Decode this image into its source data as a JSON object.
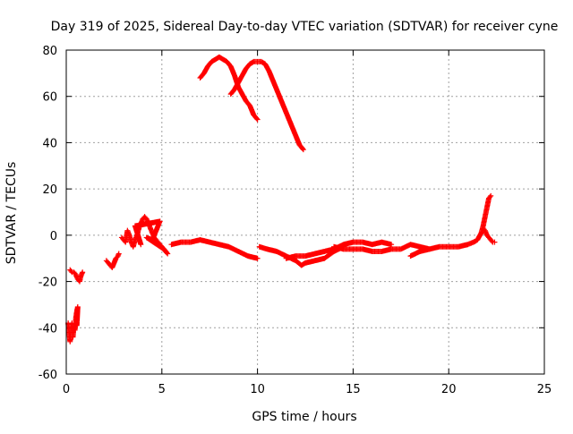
{
  "chart_data": {
    "type": "scatter",
    "title": "Day 319 of 2025, Sidereal Day-to-day VTEC variation (SDTVAR) for receiver cyne",
    "xlabel": "GPS time / hours",
    "ylabel": "SDTVAR / TECUs",
    "xlim": [
      0,
      25
    ],
    "ylim": [
      -60,
      80
    ],
    "x_ticks": [
      0,
      5,
      10,
      15,
      20,
      25
    ],
    "y_ticks": [
      -60,
      -40,
      -20,
      0,
      20,
      40,
      60,
      80
    ],
    "x_tick_labels": [
      "0",
      "5",
      "10",
      "15",
      "20",
      "25"
    ],
    "y_tick_labels": [
      "-60",
      "-40",
      "-20",
      "0",
      "20",
      "40",
      "60",
      "80"
    ],
    "grid": true,
    "marker": "+",
    "series_color": "#ff0000",
    "series": [
      {
        "name": "SDTVAR",
        "segments": [
          {
            "name": "arc-early-low",
            "points": [
              [
                0.1,
                -38
              ],
              [
                0.15,
                -42
              ],
              [
                0.2,
                -46
              ],
              [
                0.25,
                -40
              ],
              [
                0.3,
                -38
              ],
              [
                0.35,
                -44
              ],
              [
                0.4,
                -39
              ]
            ]
          },
          {
            "name": "arc-early-low-b",
            "points": [
              [
                0.45,
                -41
              ],
              [
                0.5,
                -38
              ],
              [
                0.5,
                -36
              ],
              [
                0.55,
                -33
              ],
              [
                0.6,
                -31
              ],
              [
                0.55,
                -39
              ]
            ]
          },
          {
            "name": "arc-early-mid",
            "points": [
              [
                0.2,
                -15
              ],
              [
                0.3,
                -16
              ],
              [
                0.4,
                -16
              ],
              [
                0.5,
                -17
              ],
              [
                0.6,
                -19
              ],
              [
                0.7,
                -20
              ],
              [
                0.75,
                -18
              ],
              [
                0.8,
                -17
              ],
              [
                0.85,
                -16
              ]
            ]
          },
          {
            "name": "arc-2h",
            "points": [
              [
                2.1,
                -11
              ],
              [
                2.2,
                -12
              ],
              [
                2.3,
                -13
              ],
              [
                2.4,
                -14
              ],
              [
                2.6,
                -10
              ],
              [
                2.7,
                -9
              ],
              [
                2.75,
                -8
              ]
            ]
          },
          {
            "name": "arc-3to6",
            "points": [
              [
                2.9,
                -1
              ],
              [
                3.0,
                -2
              ],
              [
                3.1,
                -3
              ],
              [
                3.2,
                2
              ],
              [
                3.3,
                0
              ],
              [
                3.4,
                -3
              ],
              [
                3.5,
                -5
              ],
              [
                3.6,
                -2
              ],
              [
                3.7,
                0
              ],
              [
                3.8,
                3
              ],
              [
                3.9,
                5
              ],
              [
                4.0,
                7
              ],
              [
                4.1,
                8
              ],
              [
                4.2,
                7
              ],
              [
                4.3,
                5
              ],
              [
                4.4,
                3
              ],
              [
                4.5,
                1
              ],
              [
                4.6,
                -1
              ],
              [
                4.7,
                -2
              ],
              [
                4.8,
                -3
              ],
              [
                4.9,
                -4
              ],
              [
                5.0,
                -5
              ],
              [
                5.2,
                -7
              ],
              [
                5.3,
                -8
              ],
              [
                5.1,
                -6
              ],
              [
                4.2,
                -1
              ],
              [
                4.5,
                -2
              ],
              [
                4.8,
                4
              ],
              [
                4.9,
                6
              ],
              [
                3.6,
                4
              ],
              [
                3.9,
                -4
              ]
            ]
          },
          {
            "name": "arc-6to10",
            "points": [
              [
                5.5,
                -4
              ],
              [
                6.0,
                -3
              ],
              [
                6.5,
                -3
              ],
              [
                7.0,
                -2
              ],
              [
                7.5,
                -3
              ],
              [
                8.0,
                -4
              ],
              [
                8.5,
                -5
              ],
              [
                9.0,
                -7
              ],
              [
                9.5,
                -9
              ],
              [
                10.0,
                -10
              ]
            ]
          },
          {
            "name": "arc-10to14",
            "points": [
              [
                10.1,
                -5
              ],
              [
                10.5,
                -6
              ],
              [
                11.0,
                -7
              ],
              [
                11.5,
                -9
              ],
              [
                12.0,
                -11
              ],
              [
                12.3,
                -13
              ],
              [
                12.5,
                -12
              ],
              [
                13.0,
                -11
              ],
              [
                13.5,
                -10
              ],
              [
                14.0,
                -7
              ],
              [
                14.5,
                -5
              ]
            ]
          },
          {
            "name": "arc-12to17",
            "points": [
              [
                11.5,
                -10
              ],
              [
                12.0,
                -9
              ],
              [
                12.5,
                -9
              ],
              [
                13.0,
                -8
              ],
              [
                13.5,
                -7
              ],
              [
                14.0,
                -6
              ],
              [
                14.5,
                -4
              ],
              [
                15.0,
                -3
              ],
              [
                15.5,
                -3
              ],
              [
                16.0,
                -4
              ],
              [
                16.5,
                -3
              ],
              [
                17.0,
                -4
              ]
            ]
          },
          {
            "name": "arc-14to19",
            "points": [
              [
                14.0,
                -5
              ],
              [
                14.5,
                -6
              ],
              [
                15.0,
                -6
              ],
              [
                15.5,
                -6
              ],
              [
                16.0,
                -7
              ],
              [
                16.5,
                -7
              ],
              [
                17.0,
                -6
              ],
              [
                17.5,
                -6
              ],
              [
                18.0,
                -4
              ],
              [
                18.5,
                -5
              ],
              [
                19.0,
                -6
              ]
            ]
          },
          {
            "name": "arc-18to22",
            "points": [
              [
                18.0,
                -9
              ],
              [
                18.5,
                -7
              ],
              [
                19.0,
                -6
              ],
              [
                19.5,
                -5
              ],
              [
                20.0,
                -5
              ],
              [
                20.5,
                -5
              ],
              [
                21.0,
                -4
              ],
              [
                21.3,
                -3
              ],
              [
                21.5,
                -2
              ],
              [
                21.7,
                1
              ],
              [
                21.8,
                4
              ],
              [
                21.9,
                8
              ],
              [
                22.0,
                12
              ],
              [
                22.1,
                16
              ],
              [
                22.2,
                17
              ]
            ]
          },
          {
            "name": "arc-22tail",
            "points": [
              [
                21.8,
                3
              ],
              [
                21.9,
                2
              ],
              [
                22.0,
                0
              ],
              [
                22.1,
                -1
              ],
              [
                22.2,
                -2
              ],
              [
                22.3,
                -3
              ],
              [
                22.4,
                -3
              ]
            ]
          },
          {
            "name": "arc-high-1",
            "points": [
              [
                7.0,
                68
              ],
              [
                7.2,
                70
              ],
              [
                7.4,
                73
              ],
              [
                7.6,
                75
              ],
              [
                7.8,
                76
              ],
              [
                8.0,
                77
              ],
              [
                8.2,
                76
              ],
              [
                8.4,
                75
              ],
              [
                8.6,
                73
              ],
              [
                8.8,
                69
              ],
              [
                9.0,
                64
              ],
              [
                9.2,
                61
              ],
              [
                9.4,
                58
              ],
              [
                9.6,
                56
              ],
              [
                9.8,
                52
              ],
              [
                10.0,
                50
              ]
            ]
          },
          {
            "name": "arc-high-2",
            "points": [
              [
                8.6,
                61
              ],
              [
                8.8,
                63
              ],
              [
                9.0,
                66
              ],
              [
                9.2,
                69
              ],
              [
                9.4,
                72
              ],
              [
                9.6,
                74
              ],
              [
                9.8,
                75
              ],
              [
                10.0,
                75
              ],
              [
                10.2,
                75
              ],
              [
                10.4,
                74
              ],
              [
                10.6,
                71
              ],
              [
                10.8,
                67
              ],
              [
                11.0,
                63
              ],
              [
                11.2,
                59
              ],
              [
                11.4,
                55
              ],
              [
                11.6,
                51
              ],
              [
                11.8,
                47
              ],
              [
                12.0,
                43
              ],
              [
                12.2,
                39
              ],
              [
                12.4,
                37
              ]
            ]
          }
        ]
      }
    ]
  }
}
